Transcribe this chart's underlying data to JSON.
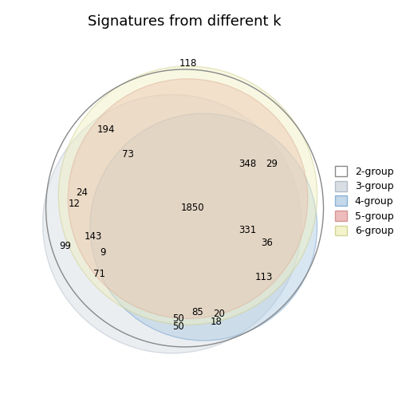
{
  "title": "Signatures from different k",
  "groups": [
    "2-group",
    "3-group",
    "4-group",
    "5-group",
    "6-group"
  ],
  "legend_colors": [
    [
      "#ffffff",
      "#aaaaaa"
    ],
    [
      "#c8d0d8",
      "#9aaabb"
    ],
    [
      "#aac8e0",
      "#6699cc"
    ],
    [
      "#e8a0a0",
      "#cc6666"
    ],
    [
      "#f0f0c0",
      "#cccc88"
    ]
  ],
  "figsize": [
    5.04,
    5.04
  ],
  "dpi": 100,
  "title_fontsize": 13,
  "label_fontsize": 8.5
}
